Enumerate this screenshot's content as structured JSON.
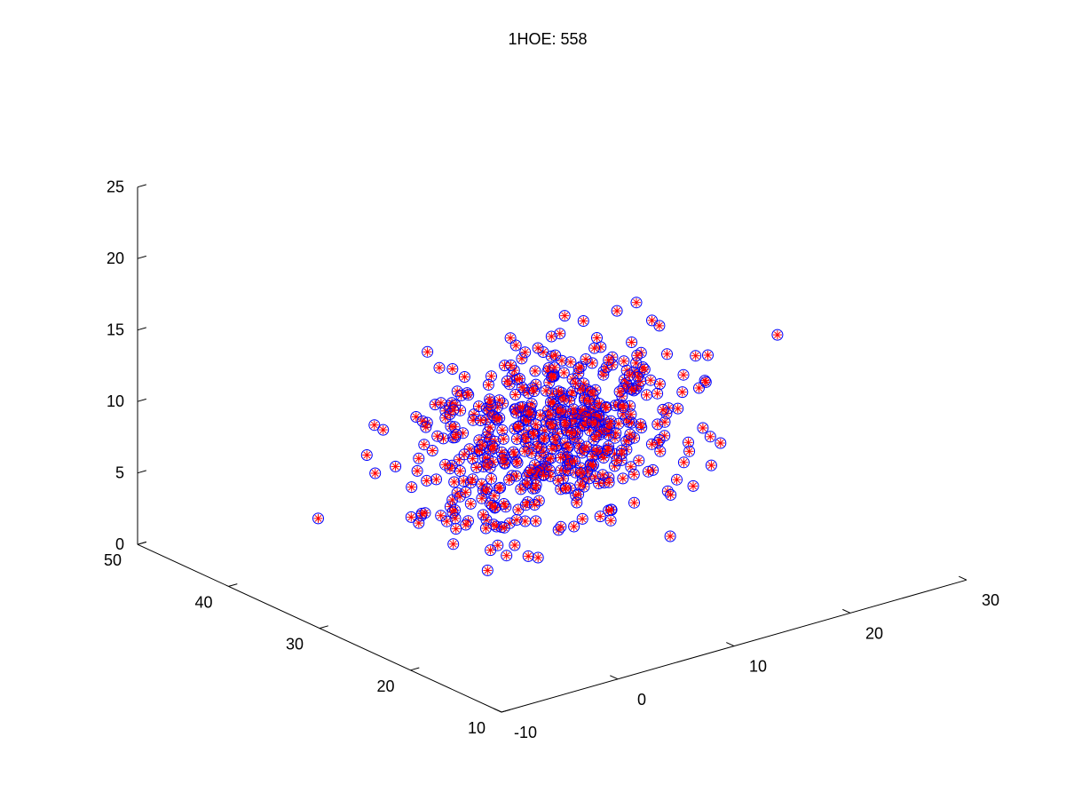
{
  "chart_data": {
    "type": "scatter",
    "title": "1HOE: 558",
    "xlabel": "",
    "ylabel": "",
    "zlabel": "",
    "xlim": [
      -10,
      30
    ],
    "ylim": [
      10,
      50
    ],
    "zlim": [
      0,
      25
    ],
    "x_ticks": [
      "-10",
      "0",
      "10",
      "20",
      "30"
    ],
    "y_ticks": [
      "10",
      "20",
      "30",
      "40",
      "50"
    ],
    "z_ticks": [
      "0",
      "5",
      "10",
      "15",
      "20",
      "25"
    ],
    "grid": false,
    "legend": "none",
    "marker": "circle with red asterisk",
    "marker_colors": {
      "circle": "#0000ff",
      "asterisk": "#ff0000"
    },
    "point_count": 558
  }
}
